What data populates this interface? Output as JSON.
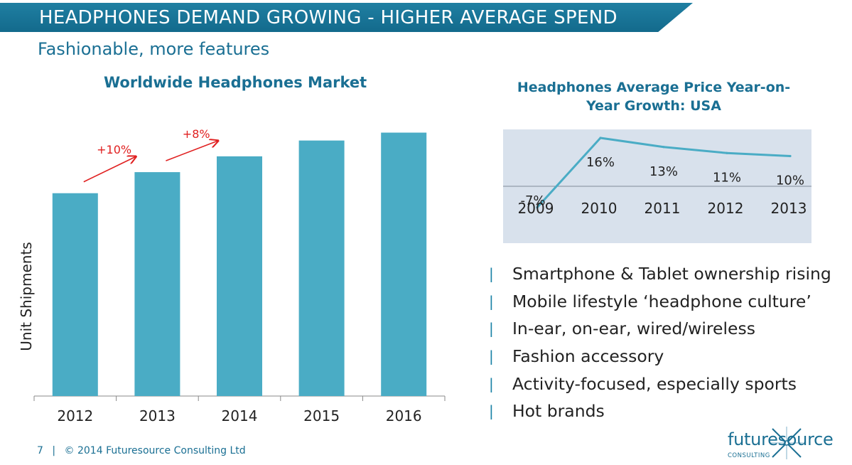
{
  "header": {
    "title": "HEADPHONES DEMAND GROWING - HIGHER AVERAGE SPEND",
    "subtitle": "Fashionable, more features"
  },
  "chart_data": [
    {
      "type": "bar",
      "title": "Worldwide Headphones Market",
      "ylabel": "Unit Shipments",
      "xlabel": "",
      "categories": [
        "2012",
        "2013",
        "2014",
        "2015",
        "2016"
      ],
      "values": [
        77,
        85,
        91,
        97,
        100
      ],
      "ylim": [
        0,
        105
      ],
      "color": "#4aacc5",
      "grid": false,
      "annotations": [
        {
          "text": "+10%",
          "from": "2012",
          "to": "2013",
          "color": "#e02020"
        },
        {
          "text": "+8%",
          "from": "2013",
          "to": "2014",
          "color": "#e02020"
        }
      ]
    },
    {
      "type": "line",
      "title": "Headphones Average Price Year-on-Year Growth: USA",
      "categories": [
        "2009",
        "2010",
        "2011",
        "2012",
        "2013"
      ],
      "values": [
        -7,
        16,
        13,
        11,
        10
      ],
      "data_labels": [
        "-7%",
        "16%",
        "13%",
        "11%",
        "10%"
      ],
      "ylim": [
        -10,
        20
      ],
      "color": "#4aacc5",
      "background": "#d8e1ec",
      "grid": false
    }
  ],
  "bullets": [
    "Smartphone & Tablet ownership rising",
    "Mobile lifestyle ‘headphone culture’",
    "In-ear, on-ear, wired/wireless",
    "Fashion accessory",
    "Activity-focused, especially sports",
    "Hot brands"
  ],
  "bullet_mark": "|",
  "footer": {
    "page": "7",
    "separator": "|",
    "copyright": "© 2014 Futuresource Consulting Ltd"
  },
  "logo": {
    "word": "futuresource",
    "sub": "CONSULTING"
  }
}
